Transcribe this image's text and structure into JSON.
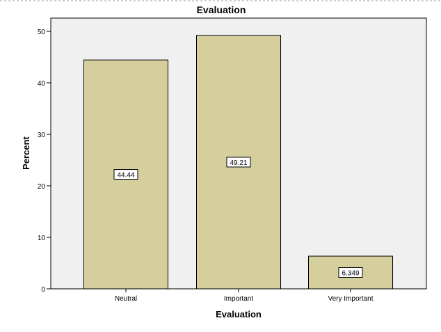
{
  "chart_data": {
    "type": "bar",
    "title": "Evaluation",
    "xlabel": "Evaluation",
    "ylabel": "Percent",
    "categories": [
      "Neutral",
      "Important",
      "Very Important"
    ],
    "values": [
      44.44,
      49.21,
      6.349
    ],
    "data_labels": [
      "44.44",
      "49.21",
      "6.349"
    ],
    "ylim": [
      0,
      52
    ],
    "yticks": [
      0,
      10,
      20,
      30,
      40,
      50
    ],
    "ytick_labels": [
      "0",
      "10",
      "20",
      "30",
      "40",
      "50"
    ],
    "grid": false,
    "legend": "none",
    "colors": {
      "bar_fill": "#d5cf9e",
      "bar_stroke": "#000000",
      "plot_background": "#f0f0f0",
      "axis": "#000000",
      "label_box": "#ffffff"
    }
  }
}
